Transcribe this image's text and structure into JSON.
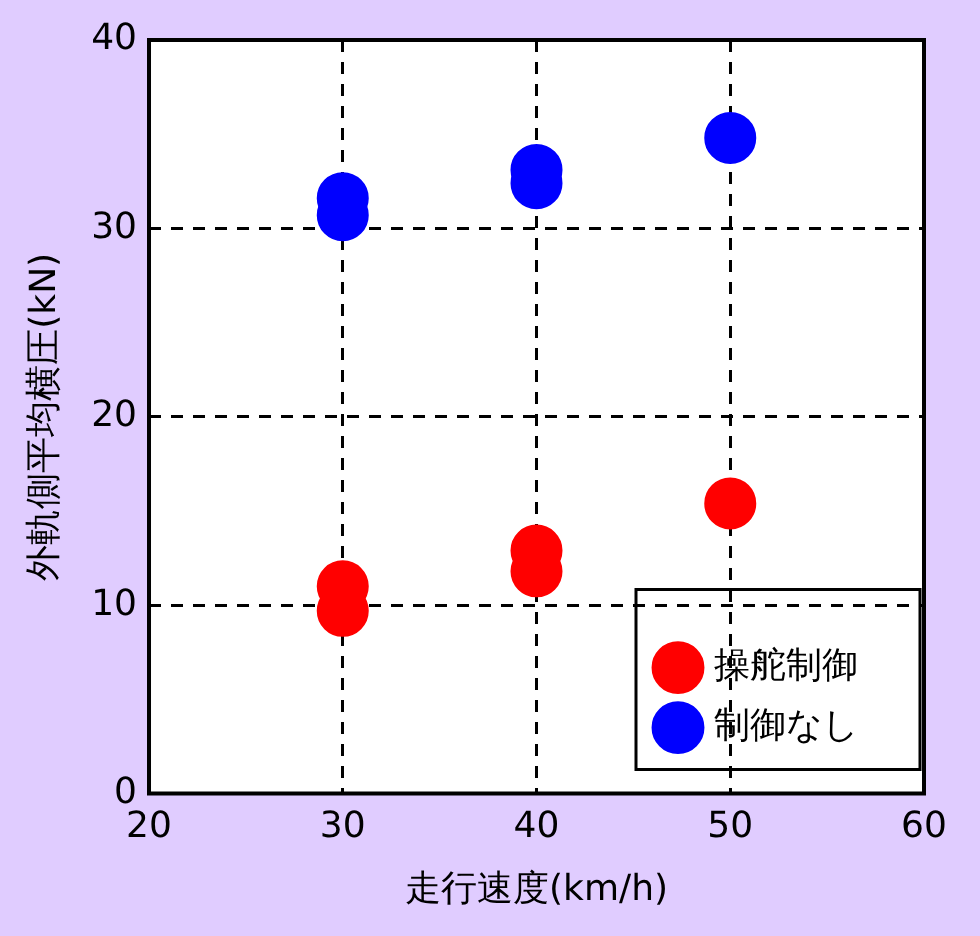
{
  "chart_data": {
    "type": "scatter",
    "xlabel": "走行速度(km/h)",
    "ylabel": "外軌側平均横圧(kN)",
    "series": [
      {
        "name": "操舵制御",
        "color": "#ff0000",
        "x": [
          30,
          30,
          40,
          40,
          50
        ],
        "values": [
          11.0,
          9.7,
          12.9,
          11.8,
          15.4
        ]
      },
      {
        "name": "制御なし",
        "color": "#0000ff",
        "x": [
          30,
          30,
          40,
          40,
          50
        ],
        "values": [
          31.6,
          30.7,
          33.1,
          32.4,
          34.8
        ]
      }
    ],
    "xlim": [
      20,
      60
    ],
    "xticks": [
      20,
      30,
      40,
      50,
      60
    ],
    "ylim": [
      0,
      40
    ],
    "yticks": [
      0,
      10,
      20,
      30,
      40
    ],
    "grid": true,
    "legend": "bottom right",
    "marker": "circle"
  }
}
